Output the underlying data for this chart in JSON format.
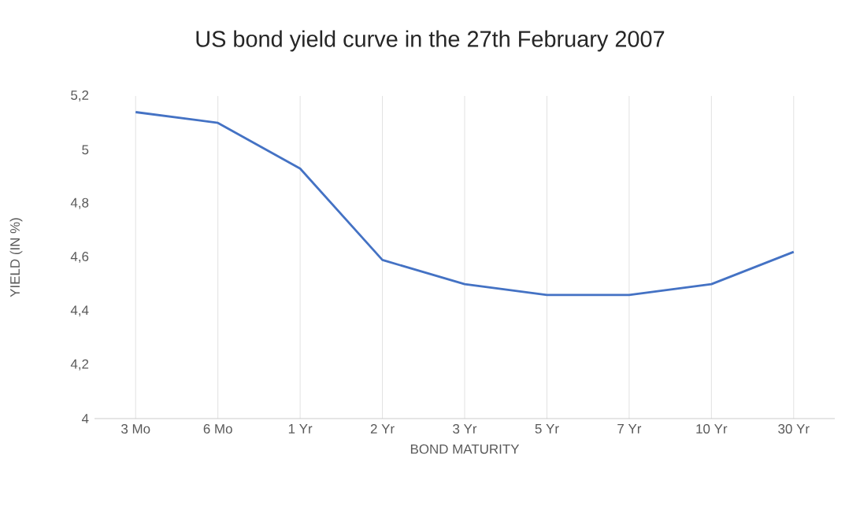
{
  "chart_data": {
    "type": "line",
    "title": "US bond yield curve in the 27th February 2007",
    "xlabel": "BOND MATURITY",
    "ylabel": "YIELD (IN %)",
    "categories": [
      "3 Mo",
      "6 Mo",
      "1 Yr",
      "2 Yr",
      "3 Yr",
      "5 Yr",
      "7 Yr",
      "10 Yr",
      "30 Yr"
    ],
    "series": [
      {
        "color": "#4472c4",
        "values": [
          5.14,
          5.1,
          4.93,
          4.59,
          4.5,
          4.46,
          4.46,
          4.5,
          4.62
        ]
      }
    ],
    "ylim": [
      4,
      5.2
    ],
    "yticks": [
      4,
      {
        "value": 4.2,
        "label": "4,2"
      },
      {
        "value": 4.4,
        "label": "4,4"
      },
      {
        "value": 4.6,
        "label": "4,6"
      },
      {
        "value": 4.8,
        "label": "4,8"
      },
      5,
      {
        "value": 5.2,
        "label": "5,2"
      }
    ],
    "grid": "x",
    "marker": "none",
    "line_style": "solid"
  }
}
